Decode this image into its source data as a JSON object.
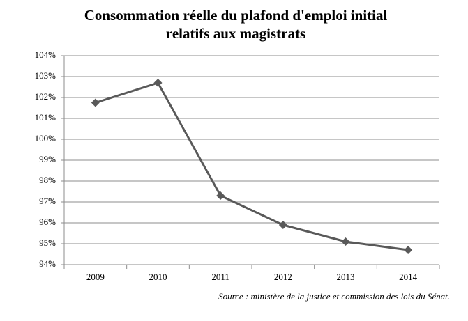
{
  "chart_data": {
    "type": "line",
    "title": [
      "Consommation réelle du plafond d'emploi initial",
      "relatifs aux magistrats"
    ],
    "categories": [
      "2009",
      "2010",
      "2011",
      "2012",
      "2013",
      "2014"
    ],
    "values": [
      101.75,
      102.7,
      97.3,
      95.9,
      95.1,
      94.7
    ],
    "color": "#595959",
    "ylim": [
      94,
      104
    ],
    "yticks": [
      {
        "value": 94,
        "label": "94%"
      },
      {
        "value": 95,
        "label": "95%"
      },
      {
        "value": 96,
        "label": "96%"
      },
      {
        "value": 97,
        "label": "97%"
      },
      {
        "value": 98,
        "label": "98%"
      },
      {
        "value": 99,
        "label": "99%"
      },
      {
        "value": 100,
        "label": "100%"
      },
      {
        "value": 101,
        "label": "101%"
      },
      {
        "value": 102,
        "label": "102%"
      },
      {
        "value": 103,
        "label": "103%"
      },
      {
        "value": 104,
        "label": "104%"
      }
    ],
    "grid": true,
    "source": "Source : ministère de la justice et commission des lois du Sénat."
  }
}
